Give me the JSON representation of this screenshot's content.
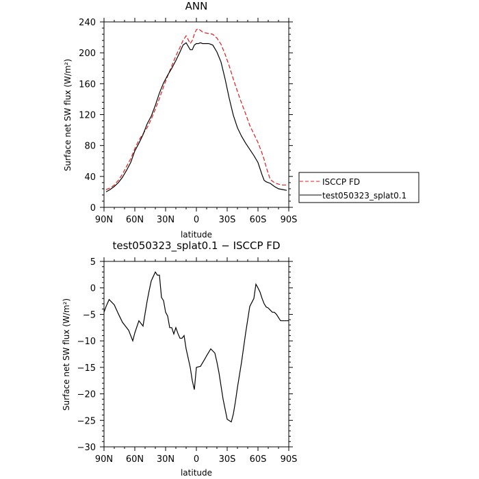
{
  "chart_data": [
    {
      "type": "line",
      "title": "ANN",
      "xlabel": "latitude",
      "ylabel": "Surface net SW flux (W/m²)",
      "xlim": [
        -90,
        90
      ],
      "ylim": [
        0,
        240
      ],
      "x_ticks": [
        -90,
        -60,
        -30,
        0,
        30,
        60,
        90
      ],
      "x_tick_labels": [
        "90N",
        "60N",
        "30N",
        "0",
        "30S",
        "60S",
        "90S"
      ],
      "y_ticks": [
        0,
        40,
        80,
        120,
        160,
        200,
        240
      ],
      "y_tick_labels": [
        "0",
        "40",
        "80",
        "120",
        "160",
        "200",
        "240"
      ],
      "legend_position": "right",
      "series": [
        {
          "name": "ISCCP FD",
          "color": "#e41a1c",
          "dash": "dashed",
          "x": [
            -88,
            -84,
            -80,
            -76,
            -72,
            -68,
            -64,
            -60,
            -56,
            -52,
            -48,
            -44,
            -40,
            -36,
            -32,
            -28,
            -24,
            -20,
            -16,
            -13,
            -10,
            -6,
            -4,
            -2,
            0,
            2,
            4,
            6,
            8,
            12,
            16,
            20,
            24,
            28,
            32,
            36,
            40,
            44,
            48,
            52,
            56,
            60,
            64,
            66,
            68,
            72,
            76,
            80,
            84,
            88
          ],
          "values": [
            23,
            25,
            29,
            35,
            43,
            53,
            63,
            76,
            87,
            95,
            103,
            114,
            127,
            141,
            156,
            170,
            183,
            196,
            207,
            216,
            222,
            212,
            216,
            224,
            230,
            231,
            229,
            227,
            226,
            225,
            224,
            219,
            211,
            198,
            183,
            166,
            150,
            135,
            121,
            106,
            95,
            84,
            70,
            62,
            52,
            36,
            32,
            30,
            29,
            29
          ]
        },
        {
          "name": "test050323_splat0.1",
          "color": "#000000",
          "dash": "solid",
          "x": [
            -88,
            -84,
            -80,
            -76,
            -72,
            -68,
            -64,
            -60,
            -56,
            -52,
            -48,
            -44,
            -40,
            -36,
            -32,
            -28,
            -24,
            -20,
            -16,
            -13,
            -10,
            -6,
            -4,
            -2,
            0,
            2,
            4,
            6,
            8,
            12,
            16,
            20,
            24,
            28,
            32,
            36,
            40,
            44,
            48,
            52,
            56,
            60,
            64,
            66,
            68,
            72,
            76,
            80,
            84,
            88
          ],
          "values": [
            20,
            23,
            27,
            32,
            39,
            48,
            58,
            73,
            83,
            94,
            108,
            118,
            132,
            148,
            161,
            171,
            180,
            190,
            201,
            210,
            213,
            204,
            204,
            210,
            212,
            212,
            213,
            212,
            212,
            212,
            210,
            201,
            188,
            166,
            141,
            119,
            103,
            92,
            83,
            75,
            67,
            58,
            42,
            35,
            33,
            31,
            27,
            24,
            23,
            22
          ]
        }
      ]
    },
    {
      "type": "line",
      "title": "test050323_splat0.1 − ISCCP FD",
      "xlabel": "latitude",
      "ylabel": "Surface net SW flux (W/m²)",
      "xlim": [
        -90,
        90
      ],
      "ylim": [
        -30,
        5
      ],
      "x_ticks": [
        -90,
        -60,
        -30,
        0,
        30,
        60,
        90
      ],
      "x_tick_labels": [
        "90N",
        "60N",
        "30N",
        "0",
        "30S",
        "60S",
        "90S"
      ],
      "y_ticks": [
        -30,
        -25,
        -20,
        -15,
        -10,
        -5,
        0,
        5
      ],
      "y_tick_labels": [
        "−30",
        "−25",
        "−20",
        "−15",
        "−10",
        "−5",
        "0",
        "5"
      ],
      "series": [
        {
          "name": "",
          "color": "#000000",
          "dash": "solid",
          "x": [
            -90,
            -88,
            -85,
            -80,
            -76,
            -72,
            -68,
            -66,
            -62,
            -60,
            -56,
            -52,
            -48,
            -46,
            -44,
            -40,
            -38,
            -36,
            -34,
            -32,
            -30,
            -28,
            -26,
            -24,
            -22,
            -20,
            -18,
            -16,
            -14,
            -12,
            -10,
            -6,
            -4,
            -2,
            0,
            2,
            4,
            8,
            10,
            14,
            18,
            20,
            22,
            26,
            30,
            34,
            36,
            38,
            40,
            44,
            48,
            52,
            56,
            58,
            60,
            62,
            64,
            66,
            68,
            70,
            72,
            74,
            76,
            78,
            80,
            82,
            84,
            86,
            88,
            90
          ],
          "values": [
            -4.6,
            -3.5,
            -2.2,
            -3.2,
            -4.9,
            -6.5,
            -7.5,
            -8.0,
            -10.0,
            -8.5,
            -6.2,
            -7.2,
            -2.5,
            -0.5,
            1.3,
            3.0,
            2.4,
            2.4,
            -1.8,
            -2.4,
            -4.6,
            -5.3,
            -7.5,
            -7.5,
            -8.7,
            -7.5,
            -8.6,
            -9.5,
            -9.5,
            -9.0,
            -11.5,
            -15.0,
            -17.5,
            -19.2,
            -15.0,
            -14.9,
            -14.8,
            -13.5,
            -12.8,
            -11.5,
            -12.3,
            -14.0,
            -16.0,
            -21.0,
            -24.8,
            -25.3,
            -23.8,
            -21.5,
            -18.8,
            -14.0,
            -8.5,
            -3.5,
            -2.0,
            0.7,
            0.0,
            -0.8,
            -2.0,
            -3.0,
            -3.6,
            -3.8,
            -4.2,
            -4.6,
            -4.6,
            -5.0,
            -5.6,
            -6.2,
            -6.2,
            -6.2,
            -6.2,
            -6.2
          ]
        }
      ]
    }
  ]
}
